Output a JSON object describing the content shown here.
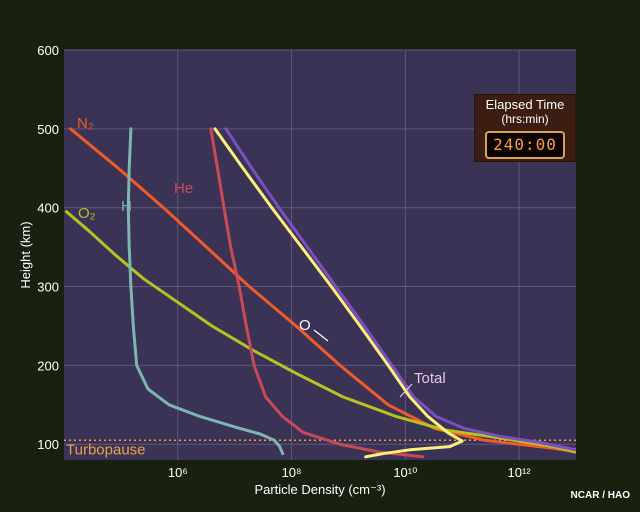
{
  "chart_data": {
    "type": "line",
    "xlabel": "Particle Density (cm⁻³)",
    "ylabel": "Height (km)",
    "x_scale": "log",
    "xlim": [
      10000,
      10000000000000
    ],
    "ylim": [
      80,
      600
    ],
    "x_ticks": [
      {
        "value": 1000000,
        "label": "10⁶"
      },
      {
        "value": 100000000,
        "label": "10⁸"
      },
      {
        "value": 10000000000,
        "label": "10¹⁰"
      },
      {
        "value": 1000000000000,
        "label": "10¹²"
      }
    ],
    "y_ticks": [
      100,
      200,
      300,
      400,
      500,
      600
    ],
    "grid": true,
    "series": [
      {
        "name": "N₂",
        "color": "#f05a28",
        "points": [
          [
            13000,
            500
          ],
          [
            90000,
            450
          ],
          [
            560000,
            400
          ],
          [
            3200000,
            350
          ],
          [
            18000000,
            300
          ],
          [
            120000000,
            250
          ],
          [
            710000000,
            200
          ],
          [
            5000000000,
            150
          ],
          [
            33000000000,
            120
          ],
          [
            250000000000,
            105
          ],
          [
            4000000000000,
            95
          ],
          [
            10000000000000,
            90
          ]
        ]
      },
      {
        "name": "O₂",
        "color": "#b8c022",
        "points": [
          [
            11000,
            395
          ],
          [
            28000,
            370
          ],
          [
            80000,
            340
          ],
          [
            250000,
            310
          ],
          [
            1000000,
            280
          ],
          [
            4000000,
            250
          ],
          [
            20000000,
            220
          ],
          [
            120000000,
            190
          ],
          [
            800000000,
            160
          ],
          [
            7000000000,
            135
          ],
          [
            50000000000,
            118
          ],
          [
            450000000000,
            108
          ],
          [
            4000000000000,
            97
          ],
          [
            10000000000000,
            90
          ]
        ]
      },
      {
        "name": "H",
        "color": "#7fb5b0",
        "points": [
          [
            150000,
            500
          ],
          [
            140000,
            450
          ],
          [
            135000,
            400
          ],
          [
            140000,
            350
          ],
          [
            150000,
            300
          ],
          [
            165000,
            250
          ],
          [
            190000,
            200
          ],
          [
            300000,
            170
          ],
          [
            700000,
            150
          ],
          [
            2500000,
            135
          ],
          [
            10000000,
            122
          ],
          [
            28000000,
            113
          ],
          [
            50000000,
            105
          ],
          [
            62000000,
            97
          ],
          [
            70000000,
            88
          ]
        ]
      },
      {
        "name": "He",
        "color": "#c84a55",
        "points": [
          [
            3800000,
            500
          ],
          [
            5000000,
            450
          ],
          [
            6500000,
            400
          ],
          [
            8500000,
            350
          ],
          [
            12000000,
            300
          ],
          [
            16000000,
            250
          ],
          [
            22000000,
            200
          ],
          [
            35000000,
            160
          ],
          [
            70000000,
            135
          ],
          [
            160000000,
            115
          ],
          [
            700000000,
            100
          ],
          [
            3500000000,
            90
          ],
          [
            20000000000,
            84
          ]
        ]
      },
      {
        "name": "O",
        "color": "#fff07a",
        "points": [
          [
            4500000,
            500
          ],
          [
            14000000,
            450
          ],
          [
            45000000,
            400
          ],
          [
            150000000,
            350
          ],
          [
            500000000,
            300
          ],
          [
            1600000000,
            250
          ],
          [
            5000000000,
            200
          ],
          [
            12000000000,
            160
          ],
          [
            25000000000,
            135
          ],
          [
            55000000000,
            115
          ],
          [
            100000000000,
            104
          ],
          [
            60000000000,
            97
          ],
          [
            12000000000,
            93
          ],
          [
            4000000000,
            88
          ],
          [
            2000000000,
            84
          ]
        ]
      },
      {
        "name": "Total",
        "color": "#7a4fc0",
        "points": [
          [
            7000000,
            500
          ],
          [
            20000000,
            450
          ],
          [
            60000000,
            400
          ],
          [
            190000000,
            350
          ],
          [
            600000000,
            300
          ],
          [
            1900000000,
            250
          ],
          [
            5800000000,
            200
          ],
          [
            14000000000,
            160
          ],
          [
            35000000000,
            135
          ],
          [
            110000000000,
            120
          ],
          [
            450000000000,
            110
          ],
          [
            2000000000000,
            103
          ],
          [
            10000000000000,
            93
          ]
        ]
      }
    ],
    "annotations": [
      {
        "text": "N₂",
        "series": "N₂"
      },
      {
        "text": "O₂",
        "series": "O₂"
      },
      {
        "text": "H",
        "series": "H"
      },
      {
        "text": "He",
        "series": "He"
      },
      {
        "text": "O",
        "series": "O"
      },
      {
        "text": "Total",
        "series": "Total"
      }
    ],
    "reference_line": {
      "y": 105,
      "label": "Turbopause",
      "color": "#f0a048"
    }
  },
  "timer": {
    "title": "Elapsed Time",
    "subtitle": "(hrs:min)",
    "value": "240:00"
  },
  "credit": "NCAR / HAO"
}
